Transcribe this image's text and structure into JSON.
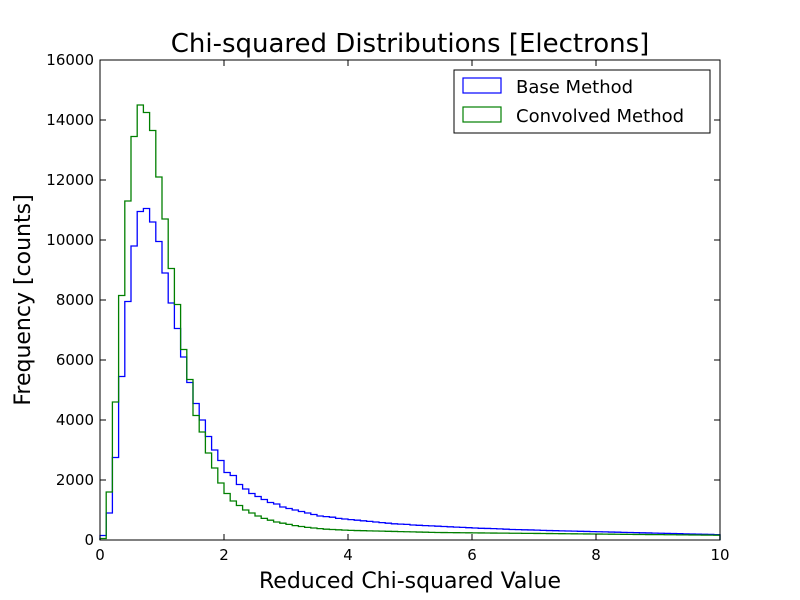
{
  "chart_data": {
    "type": "histogram",
    "title": "Chi-squared Distributions [Electrons]",
    "xlabel": "Reduced Chi-squared Value",
    "ylabel": "Frequency [counts]",
    "xlim": [
      0,
      10
    ],
    "ylim": [
      0,
      16000
    ],
    "xticks": [
      "0",
      "2",
      "4",
      "6",
      "8",
      "10"
    ],
    "yticks": [
      "0",
      "2000",
      "4000",
      "6000",
      "8000",
      "10000",
      "12000",
      "14000",
      "16000"
    ],
    "grid": false,
    "legend_position": "top-right",
    "bin_width": 0.1,
    "series": [
      {
        "name": "Base Method",
        "color": "#0000ff",
        "values": [
          150,
          900,
          2750,
          5450,
          7950,
          9800,
          10950,
          11050,
          10600,
          9950,
          8900,
          7900,
          7050,
          6100,
          5250,
          4550,
          4000,
          3450,
          3000,
          2650,
          2250,
          2150,
          1850,
          1700,
          1550,
          1450,
          1350,
          1250,
          1200,
          1100,
          1050,
          1000,
          950,
          900,
          850,
          800,
          780,
          760,
          720,
          700,
          680,
          660,
          640,
          620,
          600,
          580,
          560,
          540,
          530,
          520,
          500,
          490,
          480,
          470,
          460,
          450,
          440,
          430,
          420,
          410,
          400,
          390,
          385,
          380,
          370,
          360,
          350,
          345,
          340,
          335,
          330,
          320,
          315,
          310,
          305,
          300,
          295,
          290,
          285,
          280,
          275,
          270,
          265,
          260,
          255,
          250,
          245,
          240,
          235,
          230,
          225,
          220,
          215,
          210,
          205,
          200,
          195,
          190,
          185,
          180
        ]
      },
      {
        "name": "Convolved Method",
        "color": "#007f00",
        "values": [
          50,
          1600,
          4600,
          8150,
          11300,
          13450,
          14500,
          14250,
          13650,
          12100,
          10700,
          9050,
          7850,
          6350,
          5350,
          4150,
          3600,
          2900,
          2400,
          1900,
          1550,
          1300,
          1150,
          1000,
          900,
          800,
          720,
          660,
          600,
          560,
          520,
          480,
          450,
          420,
          400,
          380,
          360,
          350,
          340,
          330,
          320,
          315,
          310,
          305,
          300,
          295,
          290,
          285,
          280,
          275,
          270,
          265,
          260,
          255,
          250,
          248,
          246,
          244,
          242,
          240,
          238,
          236,
          234,
          232,
          230,
          228,
          226,
          224,
          222,
          220,
          218,
          216,
          214,
          212,
          210,
          208,
          206,
          204,
          202,
          200,
          198,
          196,
          194,
          192,
          190,
          188,
          186,
          184,
          182,
          180,
          178,
          176,
          174,
          172,
          170,
          168,
          166,
          164,
          162,
          160
        ]
      }
    ]
  }
}
